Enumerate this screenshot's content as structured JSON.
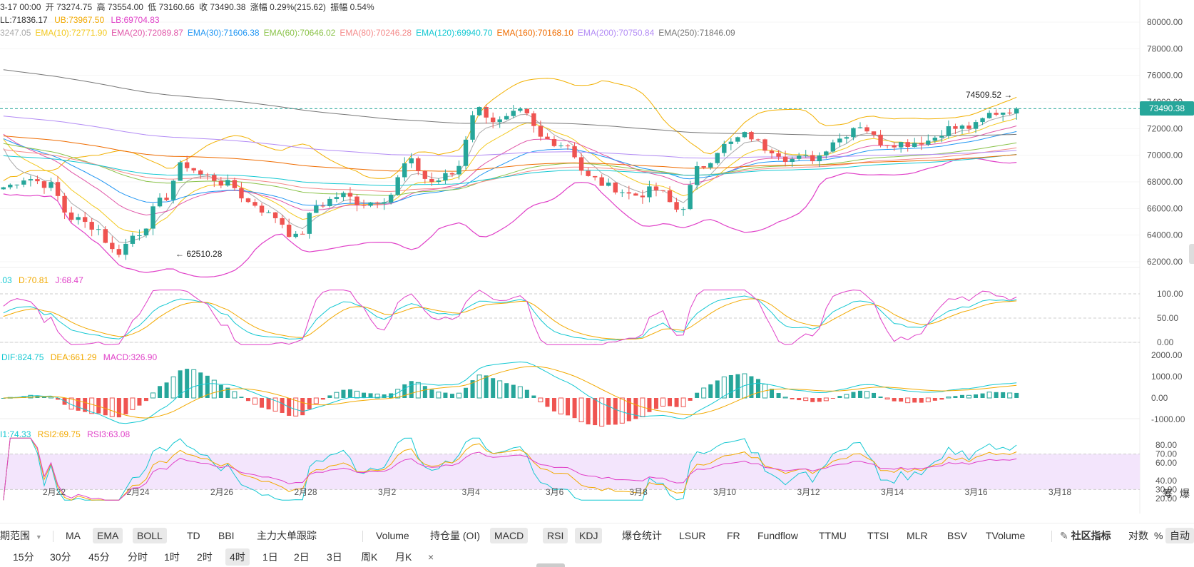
{
  "ohlc_header": {
    "date": "3-17 00:00",
    "open_label": "开",
    "open": "73274.75",
    "high_label": "高",
    "high": "73554.00",
    "low_label": "低",
    "low": "73160.66",
    "close_label": "收",
    "close": "73490.38",
    "change_label": "涨幅",
    "change": "0.29%(215.62)",
    "amp_label": "振幅",
    "amp": "0.54%"
  },
  "boll_legend": {
    "ll": "LL:71836.17",
    "ub": "UB:73967.50",
    "lb": "LB:69704.83"
  },
  "ema_legend": [
    {
      "text": "3247.05",
      "color": "#aaaaaa"
    },
    {
      "text": "EMA(10):72771.90",
      "color": "#f2c81d"
    },
    {
      "text": "EMA(20):72089.87",
      "color": "#e056a8"
    },
    {
      "text": "EMA(30):71606.38",
      "color": "#2196f3"
    },
    {
      "text": "EMA(60):70646.02",
      "color": "#8bc34a"
    },
    {
      "text": "EMA(80):70246.28",
      "color": "#f48a8a"
    },
    {
      "text": "EMA(120):69940.70",
      "color": "#14c8d2"
    },
    {
      "text": "EMA(160):70168.10",
      "color": "#ef6c00"
    },
    {
      "text": "EMA(200):70750.84",
      "color": "#b38cf5"
    },
    {
      "text": "EMA(250):71846.09",
      "color": "#777777"
    }
  ],
  "kdj_legend": {
    "k": ".03",
    "d": "D:70.81",
    "j": "J:68.47"
  },
  "macd_legend": {
    "dif": "DIF:824.75",
    "dea": "DEA:661.29",
    "macd": "MACD:326.90"
  },
  "rsi_legend": {
    "r1": "I1:74.33",
    "r2": "RSI2:69.75",
    "r3": "RSI3:63.08"
  },
  "price_axis": [
    "80000.00",
    "78000.00",
    "76000.00",
    "74000.00",
    "72000.00",
    "70000.00",
    "68000.00",
    "66000.00",
    "64000.00",
    "62000.00"
  ],
  "kdj_axis": [
    "100.00",
    "50.00",
    "0.00"
  ],
  "macd_axis": [
    "2000.00",
    "1000.00",
    "0.00",
    "-1000.00"
  ],
  "rsi_axis": [
    "80.00",
    "70.00",
    "60.00",
    "40.00",
    "30.00",
    "20.00"
  ],
  "date_axis": [
    "2月22",
    "2月24",
    "2月26",
    "2月28",
    "3月2",
    "3月4",
    "3月6",
    "3月8",
    "3月10",
    "3月12",
    "3月14",
    "3月16",
    "3月18"
  ],
  "current_price": "73490.38",
  "high_marker": "74509.52",
  "low_marker": "62510.28",
  "corner": {
    "chips": "筹",
    "liq": "爆"
  },
  "indicator_bar": {
    "range_label": "期范围",
    "main": [
      {
        "label": "MA",
        "on": false
      },
      {
        "label": "EMA",
        "on": true
      },
      {
        "label": "BOLL",
        "on": true
      },
      {
        "label": "TD",
        "on": false
      },
      {
        "label": "BBI",
        "on": false
      },
      {
        "label": "主力大单跟踪",
        "on": false
      }
    ],
    "sub": [
      {
        "label": "Volume",
        "on": false
      },
      {
        "label": "持仓量 (OI)",
        "on": false
      },
      {
        "label": "MACD",
        "on": true
      },
      {
        "label": "RSI",
        "on": true
      },
      {
        "label": "KDJ",
        "on": true
      },
      {
        "label": "爆仓统计",
        "on": false
      },
      {
        "label": "LSUR",
        "on": false
      },
      {
        "label": "FR",
        "on": false
      },
      {
        "label": "Fundflow",
        "on": false
      },
      {
        "label": "TTMU",
        "on": false
      },
      {
        "label": "TTSI",
        "on": false
      },
      {
        "label": "MLR",
        "on": false
      },
      {
        "label": "BSV",
        "on": false
      },
      {
        "label": "TVolume",
        "on": false
      }
    ],
    "community": "社区指标",
    "log": "对数",
    "pct": "%",
    "auto": "自动"
  },
  "timeframes": [
    {
      "label": "15分",
      "on": false
    },
    {
      "label": "30分",
      "on": false
    },
    {
      "label": "45分",
      "on": false
    },
    {
      "label": "分时",
      "on": false
    },
    {
      "label": "1时",
      "on": false
    },
    {
      "label": "2时",
      "on": false
    },
    {
      "label": "4时",
      "on": true
    },
    {
      "label": "1日",
      "on": false
    },
    {
      "label": "2日",
      "on": false
    },
    {
      "label": "3日",
      "on": false
    },
    {
      "label": "周K",
      "on": false
    },
    {
      "label": "月K",
      "on": false
    }
  ],
  "close_symbol": "×",
  "colors": {
    "up": "#26a69a",
    "down": "#ef5350",
    "boll": "#e040c8",
    "rsi_band": "#f3e5fc"
  },
  "chart_data": {
    "type": "candlestick",
    "interval": "4h",
    "x_range": [
      "2月21",
      "3月17"
    ],
    "ylim": [
      61000,
      80800
    ],
    "anchors": [
      {
        "date": "2月21",
        "close": 67600
      },
      {
        "date": "2月22",
        "close": 68300
      },
      {
        "date": "2月23",
        "close": 67800
      },
      {
        "date": "2月23",
        "close": 65300
      },
      {
        "date": "2月24",
        "close": 64700
      },
      {
        "date": "2月24",
        "close": 62700
      },
      {
        "date": "2月25",
        "close": 64200
      },
      {
        "date": "2月26",
        "close": 66500
      },
      {
        "date": "2月26",
        "close": 69300
      },
      {
        "date": "2月27",
        "close": 68400
      },
      {
        "date": "2月27",
        "close": 67800
      },
      {
        "date": "2月28",
        "close": 66400
      },
      {
        "date": "2月28",
        "close": 65400
      },
      {
        "date": "2月29",
        "close": 63800
      },
      {
        "date": "3月1",
        "close": 66300
      },
      {
        "date": "3月1",
        "close": 67000
      },
      {
        "date": "3月2",
        "close": 66400
      },
      {
        "date": "3月3",
        "close": 66800
      },
      {
        "date": "3月3",
        "close": 69500
      },
      {
        "date": "3月4",
        "close": 68000
      },
      {
        "date": "3月4",
        "close": 68600
      },
      {
        "date": "3月5",
        "close": 73500
      },
      {
        "date": "3月5",
        "close": 72500
      },
      {
        "date": "3月6",
        "close": 73200
      },
      {
        "date": "3月6",
        "close": 71200
      },
      {
        "date": "3月7",
        "close": 70800
      },
      {
        "date": "3月7",
        "close": 68300
      },
      {
        "date": "3月8",
        "close": 67600
      },
      {
        "date": "3月8",
        "close": 67000
      },
      {
        "date": "3月9",
        "close": 67400
      },
      {
        "date": "3月9",
        "close": 65900
      },
      {
        "date": "3月10",
        "close": 69200
      },
      {
        "date": "3月10",
        "close": 70700
      },
      {
        "date": "3月11",
        "close": 71500
      },
      {
        "date": "3月11",
        "close": 70500
      },
      {
        "date": "3月12",
        "close": 69700
      },
      {
        "date": "3月12",
        "close": 69800
      },
      {
        "date": "3月13",
        "close": 71200
      },
      {
        "date": "3月13",
        "close": 72300
      },
      {
        "date": "3月14",
        "close": 71000
      },
      {
        "date": "3月14",
        "close": 70900
      },
      {
        "date": "3月15",
        "close": 71100
      },
      {
        "date": "3月15",
        "close": 72000
      },
      {
        "date": "3月16",
        "close": 72100
      },
      {
        "date": "3月16",
        "close": 73200
      },
      {
        "date": "3月17",
        "close": 73500
      }
    ],
    "period_high": 74509.52,
    "period_low": 62510.28
  }
}
